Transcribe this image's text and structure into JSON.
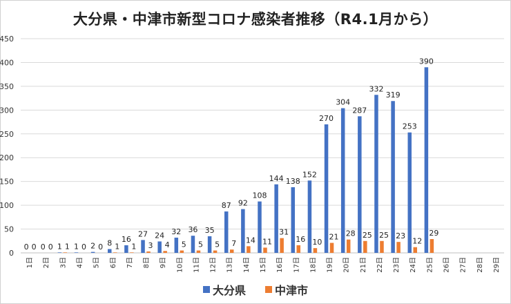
{
  "chart_data": {
    "type": "bar",
    "title": "大分県・中津市新型コロナ感染者推移（R4.1月から）",
    "categories": [
      "1日",
      "2日",
      "3日",
      "4日",
      "5日",
      "6日",
      "7日",
      "8日",
      "9日",
      "10日",
      "11日",
      "12日",
      "13日",
      "14日",
      "15日",
      "16日",
      "17日",
      "18日",
      "19日",
      "20日",
      "21日",
      "22日",
      "23日",
      "24日",
      "25日",
      "26日",
      "27日",
      "28日",
      "29日"
    ],
    "series": [
      {
        "name": "大分県",
        "color": "#4472C4",
        "values": [
          0,
          0,
          1,
          1,
          2,
          8,
          16,
          27,
          24,
          32,
          36,
          35,
          87,
          92,
          108,
          144,
          138,
          152,
          270,
          304,
          287,
          332,
          319,
          253,
          390,
          null,
          null,
          null,
          null
        ]
      },
      {
        "name": "中津市",
        "color": "#ED7D31",
        "values": [
          0,
          0,
          1,
          0,
          0,
          1,
          1,
          3,
          4,
          5,
          5,
          5,
          7,
          14,
          11,
          31,
          16,
          10,
          21,
          28,
          25,
          25,
          23,
          12,
          29,
          null,
          null,
          null,
          null
        ]
      }
    ],
    "yticks": [
      0,
      50,
      100,
      150,
      200,
      250,
      300,
      350,
      400,
      450
    ],
    "ylim": [
      0,
      450
    ],
    "xlabel": "",
    "ylabel": "",
    "legend_position": "bottom"
  }
}
